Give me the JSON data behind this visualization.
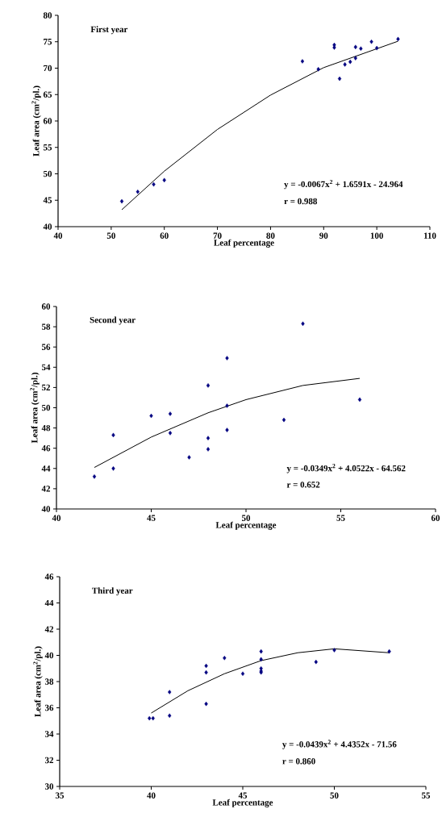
{
  "chart_data": [
    {
      "type": "scatter",
      "title": "First year",
      "xlabel": "Leaf percentage",
      "ylabel": "Leaf area (cm$^{2}$/pl.)",
      "xlim": [
        40,
        110
      ],
      "ylim": [
        40,
        80
      ],
      "xticks": [
        40,
        50,
        60,
        70,
        80,
        90,
        100,
        110
      ],
      "yticks": [
        40,
        45,
        50,
        55,
        60,
        65,
        70,
        75,
        80
      ],
      "annotations": [
        "y = -0.0067x$^{2}$ + 1.6591x - 24.964",
        "r = 0.988"
      ],
      "series": [
        {
          "marker": "diamond",
          "color": "#000080",
          "x": [
            52,
            55,
            58,
            60,
            86,
            89,
            92,
            92,
            93,
            94,
            95,
            96,
            96,
            97,
            99,
            100,
            104
          ],
          "values": [
            44.8,
            46.6,
            48,
            48.8,
            71.3,
            69.8,
            74.4,
            73.9,
            68,
            70.7,
            71.2,
            74,
            71.9,
            73.7,
            75,
            73.8,
            75.5
          ]
        },
        {
          "type": "line",
          "marker": "none",
          "line_style": "solid",
          "color": "#000000",
          "x": [
            52,
            60,
            70,
            80,
            90,
            104
          ],
          "values": [
            43.2,
            50.5,
            58.4,
            64.9,
            70.1,
            75.1
          ]
        }
      ]
    },
    {
      "type": "scatter",
      "title": "Second year",
      "xlabel": "Leaf  percentage",
      "ylabel": "Leaf area (cm$^{2}$/pl.)",
      "xlim": [
        40,
        60
      ],
      "ylim": [
        40,
        60
      ],
      "xticks": [
        40,
        45,
        50,
        55,
        60
      ],
      "yticks": [
        40,
        42,
        44,
        46,
        48,
        50,
        52,
        54,
        56,
        58,
        60
      ],
      "annotations": [
        "y = -0.0349x$^{2}$ + 4.0522x - 64.562",
        "r = 0.652"
      ],
      "series": [
        {
          "marker": "diamond",
          "color": "#000080",
          "x": [
            42,
            43,
            43,
            45,
            46,
            46,
            47,
            48,
            48,
            48,
            49,
            49,
            49,
            52,
            53,
            56
          ],
          "values": [
            43.2,
            47.3,
            44,
            49.2,
            49.4,
            47.5,
            45.1,
            52.2,
            47,
            45.9,
            54.9,
            50.2,
            47.8,
            48.8,
            58.3,
            50.8
          ]
        },
        {
          "type": "line",
          "marker": "none",
          "line_style": "solid",
          "color": "#000000",
          "x": [
            42,
            45,
            48,
            50,
            53,
            56
          ],
          "values": [
            44.1,
            47.1,
            49.5,
            50.8,
            52.2,
            52.9
          ]
        }
      ]
    },
    {
      "type": "scatter",
      "title": "Third year",
      "xlabel": "Leaf percentage",
      "ylabel": "Leaf area (cm$^{2}$/pl.)",
      "xlim": [
        35,
        55
      ],
      "ylim": [
        30,
        46
      ],
      "xticks": [
        35,
        40,
        45,
        50,
        55
      ],
      "yticks": [
        30,
        32,
        34,
        36,
        38,
        40,
        42,
        44,
        46
      ],
      "annotations": [
        "y = -0.0439x$^{2}$ + 4.4352x - 71.56",
        "r = 0.860"
      ],
      "series": [
        {
          "marker": "diamond",
          "color": "#000080",
          "x": [
            39.9,
            40.1,
            41,
            41,
            43,
            43,
            43,
            44,
            45,
            46,
            46,
            46,
            46,
            46,
            49,
            50,
            53
          ],
          "values": [
            35.2,
            35.2,
            37.2,
            35.4,
            39.2,
            38.7,
            36.3,
            39.8,
            38.6,
            40.3,
            39.7,
            39,
            38.8,
            38.7,
            39.5,
            40.4,
            40.3
          ]
        },
        {
          "type": "line",
          "marker": "none",
          "line_style": "solid",
          "color": "#000000",
          "x": [
            40,
            42,
            44,
            46,
            48,
            50,
            53
          ],
          "values": [
            35.6,
            37.3,
            38.6,
            39.6,
            40.2,
            40.5,
            40.2
          ]
        }
      ]
    }
  ]
}
